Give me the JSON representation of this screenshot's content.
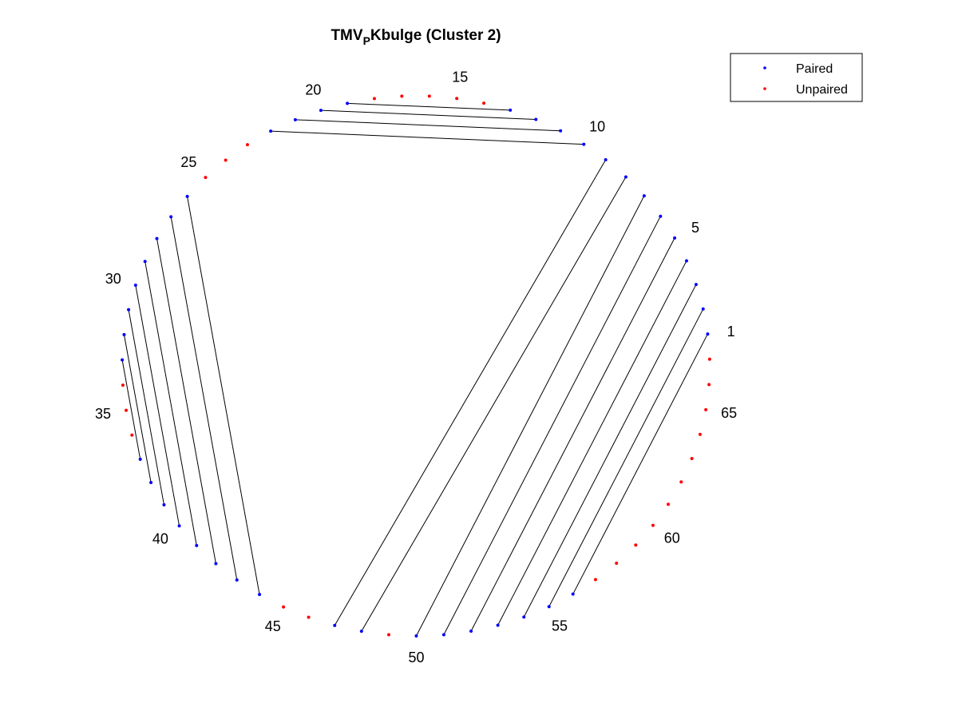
{
  "chart_data": {
    "type": "arc-diagram",
    "title": {
      "prefix": "TMV",
      "subscript": "P",
      "suffix": "Kbulge (Cluster 2)"
    },
    "sequence_length": 67,
    "index_labels": [
      "1",
      "5",
      "10",
      "15",
      "20",
      "25",
      "30",
      "35",
      "40",
      "45",
      "50",
      "55",
      "60",
      "65"
    ],
    "paired": [
      1,
      2,
      3,
      4,
      5,
      6,
      7,
      8,
      9,
      10,
      11,
      12,
      13,
      19,
      20,
      21,
      22,
      26,
      27,
      28,
      29,
      30,
      31,
      32,
      33,
      37,
      38,
      39,
      40,
      41,
      42,
      43,
      44,
      47,
      48,
      50,
      51,
      52,
      53,
      54,
      55,
      56
    ],
    "unpaired": [
      14,
      15,
      16,
      17,
      18,
      23,
      24,
      25,
      34,
      35,
      36,
      45,
      46,
      49,
      57,
      58,
      59,
      60,
      61,
      62,
      63,
      64,
      65,
      66,
      67
    ],
    "pairs": [
      [
        1,
        56
      ],
      [
        2,
        55
      ],
      [
        3,
        54
      ],
      [
        4,
        53
      ],
      [
        5,
        52
      ],
      [
        6,
        51
      ],
      [
        7,
        50
      ],
      [
        8,
        48
      ],
      [
        9,
        47
      ],
      [
        10,
        22
      ],
      [
        11,
        21
      ],
      [
        12,
        20
      ],
      [
        13,
        19
      ],
      [
        26,
        44
      ],
      [
        27,
        43
      ],
      [
        28,
        42
      ],
      [
        29,
        41
      ],
      [
        30,
        40
      ],
      [
        31,
        39
      ],
      [
        32,
        38
      ],
      [
        33,
        37
      ]
    ],
    "legend": [
      {
        "label": "Paired",
        "color": "#0000ff"
      },
      {
        "label": "Unpaired",
        "color": "#ff0000"
      }
    ],
    "legend_position": "top-right",
    "colors": {
      "paired": "#0000ff",
      "unpaired": "#ff0000",
      "pair_line": "#000000"
    }
  }
}
